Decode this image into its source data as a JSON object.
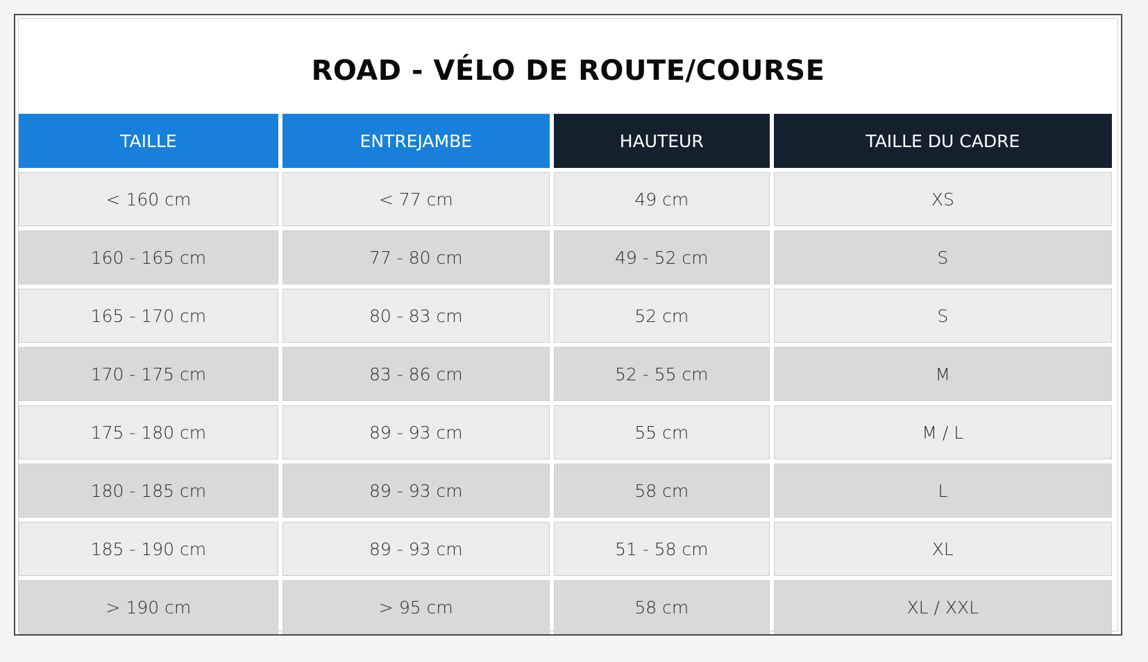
{
  "title": "ROAD - VÉLO DE ROUTE/COURSE",
  "colors": {
    "header_blue": "#1880da",
    "header_navy": "#15202f",
    "row_light": "#ececee",
    "row_dark": "#d9d9d9"
  },
  "headers": [
    "TAILLE",
    "ENTREJAMBE",
    "HAUTEUR",
    "TAILLE DU CADRE"
  ],
  "rows": [
    [
      "< 160 cm",
      "< 77 cm",
      "49 cm",
      "XS"
    ],
    [
      "160 - 165 cm",
      "77 - 80 cm",
      "49 - 52 cm",
      "S"
    ],
    [
      "165 - 170 cm",
      "80 - 83 cm",
      "52 cm",
      "S"
    ],
    [
      "170 - 175 cm",
      "83 - 86 cm",
      "52 - 55 cm",
      "M"
    ],
    [
      "175 - 180 cm",
      "89 - 93 cm",
      "55 cm",
      "M / L"
    ],
    [
      "180 - 185 cm",
      "89 - 93 cm",
      "58 cm",
      "L"
    ],
    [
      "185 - 190 cm",
      "89 - 93 cm",
      "51 - 58 cm",
      "XL"
    ],
    [
      "> 190 cm",
      "> 95 cm",
      "58 cm",
      "XL / XXL"
    ]
  ]
}
